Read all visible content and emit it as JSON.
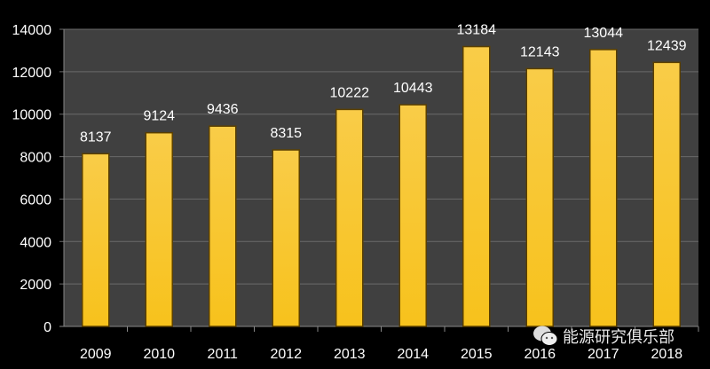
{
  "chart_data": {
    "type": "bar",
    "categories": [
      "2009",
      "2010",
      "2011",
      "2012",
      "2013",
      "2014",
      "2015",
      "2016",
      "2017",
      "2018"
    ],
    "values": [
      8137,
      9124,
      9436,
      8315,
      10222,
      10443,
      13184,
      12143,
      13044,
      12439
    ],
    "title": "",
    "xlabel": "",
    "ylabel": "",
    "ylim": [
      0,
      14000
    ],
    "yticks": [
      0,
      2000,
      4000,
      6000,
      8000,
      10000,
      12000,
      14000
    ],
    "grid": true,
    "data_labels": true,
    "colors": {
      "background": "#000000",
      "plot_background": "#404040",
      "bar": "#f7c21c",
      "bar_edge": "#5a3f00",
      "grid": "#6a6a6a",
      "text": "#ffffff"
    }
  },
  "watermark": {
    "text": "能源研究俱乐部",
    "icon": "wechat-icon"
  }
}
